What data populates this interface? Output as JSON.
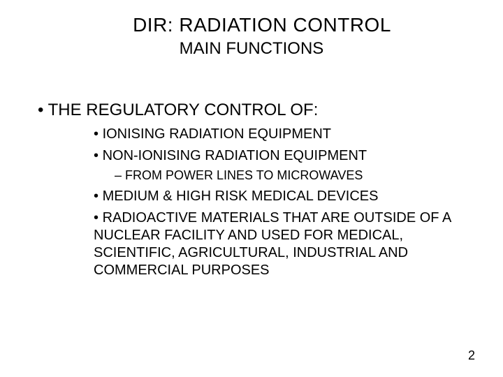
{
  "title": "DIR: RADIATION CONTROL",
  "subtitle": "MAIN FUNCTIONS",
  "lvl1": {
    "item0": "THE REGULATORY CONTROL OF:"
  },
  "lvl2": {
    "item0": "IONISING RADIATION EQUIPMENT",
    "item1": "NON-IONISING RADIATION EQUIPMENT",
    "item2": "MEDIUM & HIGH RISK MEDICAL DEVICES",
    "item3": "RADIOACTIVE MATERIALS THAT ARE OUTSIDE OF A NUCLEAR FACILITY AND USED FOR MEDICAL, SCIENTIFIC, AGRICULTURAL, INDUSTRIAL AND COMMERCIAL PURPOSES"
  },
  "lvl3": {
    "item0": "FROM POWER LINES TO MICROWAVES"
  },
  "page_number": "2",
  "colors": {
    "background": "#ffffff",
    "text": "#000000"
  },
  "typography": {
    "font_family": "Arial",
    "title_size_pt": 28,
    "subtitle_size_pt": 24,
    "lvl1_size_pt": 24,
    "lvl2_size_pt": 20,
    "lvl3_size_pt": 18,
    "pagenum_size_pt": 18
  }
}
